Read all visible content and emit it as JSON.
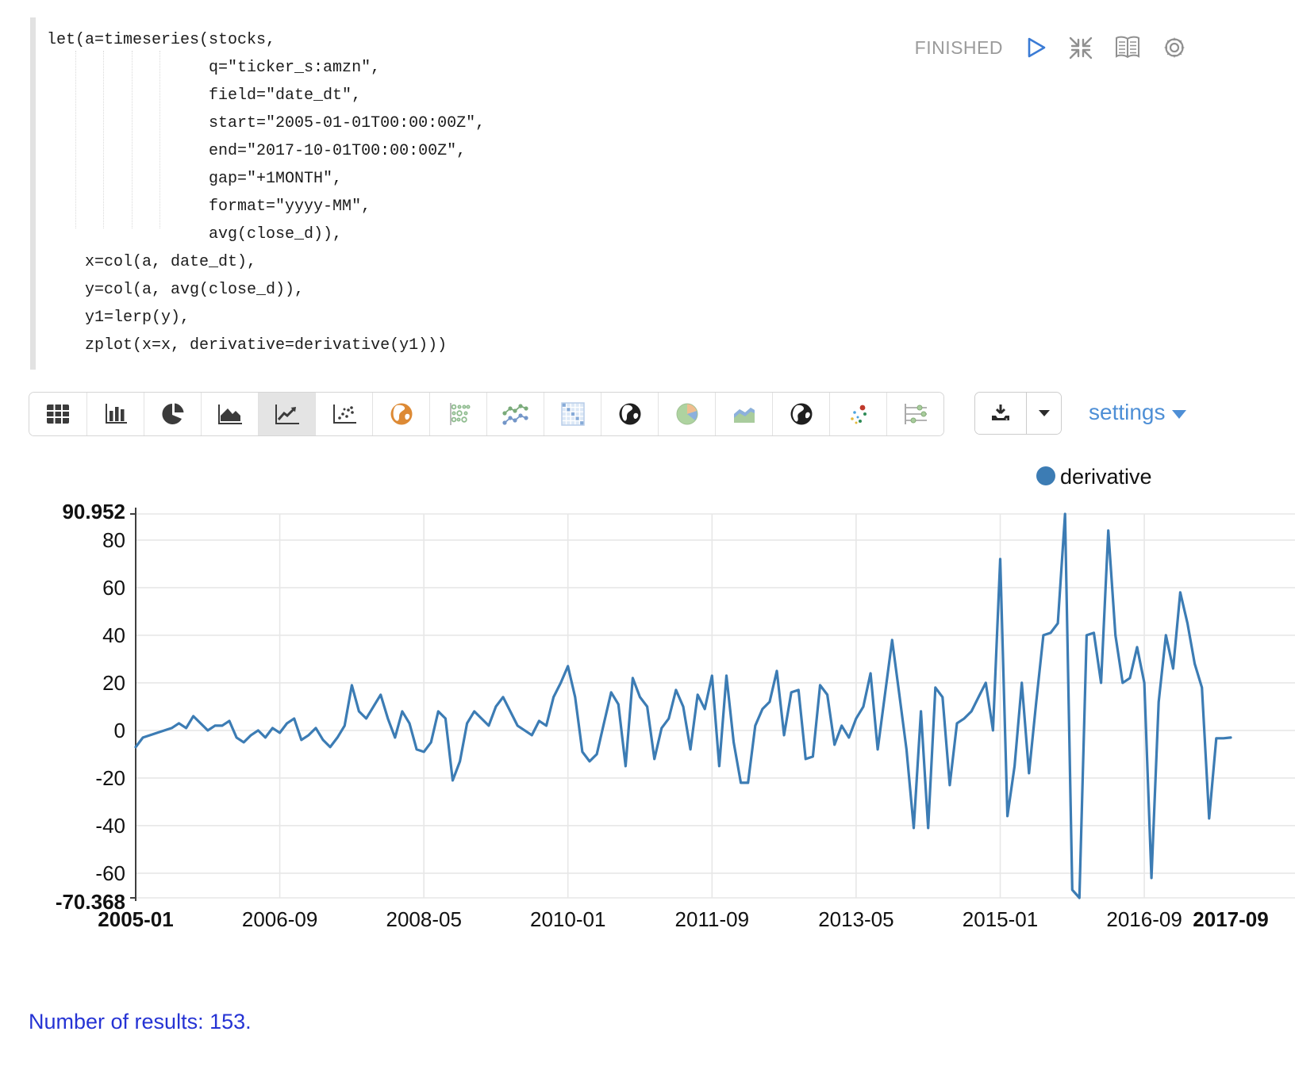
{
  "paragraph": {
    "status": "FINISHED",
    "controls": [
      "play-icon",
      "shrink-icon",
      "book-icon",
      "gear-icon"
    ],
    "code_lines": [
      "let(a=timeseries(stocks,",
      "                 q=\"ticker_s:amzn\",",
      "                 field=\"date_dt\",",
      "                 start=\"2005-01-01T00:00:00Z\",",
      "                 end=\"2017-10-01T00:00:00Z\",",
      "                 gap=\"+1MONTH\",",
      "                 format=\"yyyy-MM\",",
      "                 avg(close_d)),",
      "    x=col(a, date_dt),",
      "    y=col(a, avg(close_d)),",
      "    y1=lerp(y),",
      "    zplot(x=x, derivative=derivative(y1)))"
    ]
  },
  "toolbar": {
    "buttons": [
      "table",
      "bar-chart",
      "pie-chart",
      "area-chart",
      "line-chart",
      "scatter-plot",
      "map-orange",
      "bubble-grid",
      "multi-line",
      "heatmap",
      "globe-dark",
      "pie-colored",
      "stacked-area",
      "globe-dark-2",
      "scatter-colored",
      "parallel-sliders"
    ],
    "selected_chart": "line-chart",
    "settings_label": "settings"
  },
  "colors": {
    "line": "#3c7cb4",
    "legend_dot": "#3c7cb4",
    "settings_link": "#4e8fd6",
    "results_text": "#2533d4",
    "status_text": "#9b9b9b",
    "grid": "#e7e7e7",
    "axis": "#3f3f3f"
  },
  "chart_data": {
    "type": "line",
    "title": "",
    "xlabel": "",
    "ylabel": "",
    "legend": [
      {
        "name": "derivative",
        "color": "#3c7cb4"
      }
    ],
    "legend_position": "top-right",
    "grid": true,
    "x_start": "2005-01",
    "x_end": "2017-09",
    "x_gap": "+1MONTH",
    "point_count": 153,
    "ylim": [
      -70.368,
      90.952
    ],
    "y_max_label": "90.952",
    "y_min_label": "-70.368",
    "y_ticks": [
      80,
      60,
      40,
      20,
      0,
      -20,
      -40,
      -60
    ],
    "x_ticks": [
      {
        "index": 0,
        "label": "2005-01",
        "bold": true
      },
      {
        "index": 20,
        "label": "2006-09",
        "bold": false
      },
      {
        "index": 40,
        "label": "2008-05",
        "bold": false
      },
      {
        "index": 60,
        "label": "2010-01",
        "bold": false
      },
      {
        "index": 80,
        "label": "2011-09",
        "bold": false
      },
      {
        "index": 100,
        "label": "2013-05",
        "bold": false
      },
      {
        "index": 120,
        "label": "2015-01",
        "bold": false
      },
      {
        "index": 140,
        "label": "2016-09",
        "bold": false
      },
      {
        "index": 152,
        "label": "2017-09",
        "bold": true
      }
    ],
    "series": [
      {
        "name": "derivative",
        "values": [
          -7,
          -3,
          -2,
          -1,
          0,
          1,
          3,
          1,
          6,
          3,
          0,
          2,
          2,
          4,
          -3,
          -5,
          -2,
          0,
          -3,
          1,
          -1,
          3,
          5,
          -4,
          -2,
          1,
          -4,
          -7,
          -3,
          2,
          19,
          8,
          5,
          10,
          15,
          5,
          -3,
          8,
          3,
          -8,
          -9,
          -5,
          8,
          5,
          -21,
          -13,
          3,
          8,
          5,
          2,
          10,
          14,
          8,
          2,
          0,
          -2,
          4,
          2,
          14,
          20,
          27,
          14,
          -9,
          -13,
          -10,
          3,
          16,
          11,
          -15,
          22,
          14,
          10,
          -12,
          1,
          5,
          17,
          10,
          -8,
          15,
          9,
          23,
          -15,
          23,
          -5,
          -22,
          -22,
          2,
          9,
          12,
          25,
          -2,
          16,
          17,
          -12,
          -11,
          19,
          15,
          -6,
          2,
          -3,
          5,
          10,
          24,
          -8,
          15,
          38,
          15,
          -8,
          -41,
          8,
          -41,
          18,
          14,
          -23,
          3,
          5,
          8,
          14,
          20,
          0,
          72,
          -36,
          -15,
          20,
          -18,
          12,
          40,
          41,
          45,
          90.952,
          -67,
          -70.368,
          40,
          41,
          20,
          84,
          40,
          20,
          22,
          35,
          20,
          -62,
          12,
          40,
          26,
          58,
          45,
          28,
          18,
          -37,
          -3.3,
          -3.3,
          -3
        ]
      }
    ]
  },
  "footer": {
    "results_text": "Number of results: 153."
  }
}
